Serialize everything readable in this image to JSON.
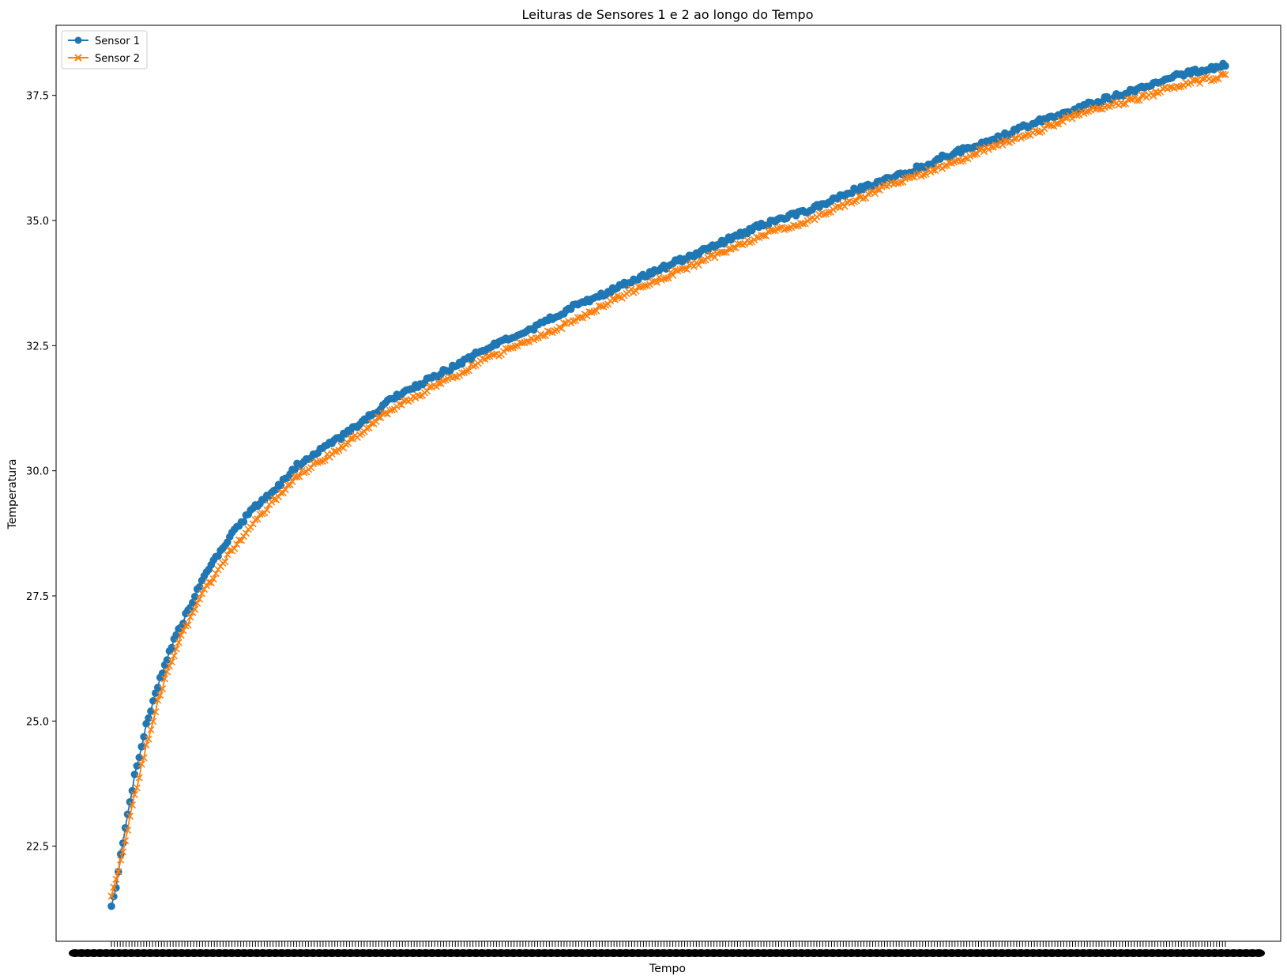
{
  "colors": {
    "series1": "#1f77b4",
    "series2": "#ff7f0e"
  },
  "chart_data": {
    "type": "line",
    "title": "Leituras de Sensores 1 e 2 ao longo do Tempo",
    "xlabel": "Tempo",
    "ylabel": "Temperatura",
    "ylim": [
      20.6,
      38.9
    ],
    "yticks": [
      "22.5",
      "25.0",
      "27.5",
      "30.0",
      "32.5",
      "35.0",
      "37.5"
    ],
    "grid": false,
    "legend_position": "top-left",
    "x_tick_labels": "overlapping, unreadable",
    "x_samples": 380,
    "series": [
      {
        "name": "Sensor 1",
        "marker": "circle",
        "color": "#1f77b4",
        "points": [
          [
            0,
            21.3
          ],
          [
            2,
            21.7
          ],
          [
            5,
            22.6
          ],
          [
            10,
            23.9
          ],
          [
            15,
            24.9
          ],
          [
            20,
            25.7
          ],
          [
            25,
            26.4
          ],
          [
            30,
            26.9
          ],
          [
            40,
            27.9
          ],
          [
            50,
            28.6
          ],
          [
            60,
            29.2
          ],
          [
            70,
            29.6
          ],
          [
            80,
            30.1
          ],
          [
            90,
            30.4
          ],
          [
            100,
            30.7
          ],
          [
            120,
            31.4
          ],
          [
            140,
            31.9
          ],
          [
            160,
            32.4
          ],
          [
            180,
            32.8
          ],
          [
            200,
            33.3
          ],
          [
            220,
            33.7
          ],
          [
            240,
            34.1
          ],
          [
            260,
            34.5
          ],
          [
            280,
            34.9
          ],
          [
            300,
            35.2
          ],
          [
            320,
            35.6
          ],
          [
            340,
            35.9
          ],
          [
            360,
            36.3
          ],
          [
            380,
            36.6
          ],
          [
            400,
            37.0
          ],
          [
            420,
            37.3
          ],
          [
            440,
            37.6
          ],
          [
            460,
            37.9
          ],
          [
            480,
            38.1
          ]
        ]
      },
      {
        "name": "Sensor 2",
        "marker": "x",
        "color": "#ff7f0e",
        "points": [
          [
            0,
            21.5
          ],
          [
            2,
            21.8
          ],
          [
            5,
            22.4
          ],
          [
            10,
            23.5
          ],
          [
            15,
            24.5
          ],
          [
            20,
            25.4
          ],
          [
            25,
            26.1
          ],
          [
            30,
            26.7
          ],
          [
            40,
            27.6
          ],
          [
            50,
            28.3
          ],
          [
            60,
            28.9
          ],
          [
            70,
            29.4
          ],
          [
            80,
            29.9
          ],
          [
            90,
            30.2
          ],
          [
            100,
            30.5
          ],
          [
            120,
            31.2
          ],
          [
            140,
            31.7
          ],
          [
            160,
            32.2
          ],
          [
            180,
            32.6
          ],
          [
            200,
            33.0
          ],
          [
            220,
            33.5
          ],
          [
            240,
            33.9
          ],
          [
            260,
            34.3
          ],
          [
            280,
            34.7
          ],
          [
            300,
            35.0
          ],
          [
            320,
            35.4
          ],
          [
            340,
            35.8
          ],
          [
            360,
            36.1
          ],
          [
            380,
            36.5
          ],
          [
            400,
            36.8
          ],
          [
            420,
            37.2
          ],
          [
            440,
            37.4
          ],
          [
            460,
            37.7
          ],
          [
            480,
            37.9
          ]
        ]
      }
    ]
  }
}
